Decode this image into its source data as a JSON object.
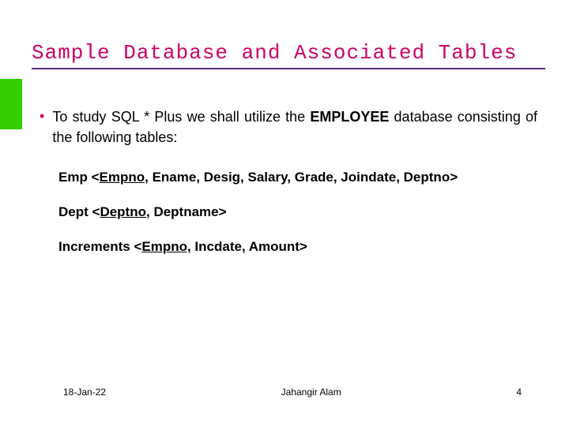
{
  "title": "Sample Database and Associated Tables",
  "bullet": {
    "pre": "To study SQL * Plus we shall utilize the ",
    "bold": "EMPLOYEE",
    "post": " database consisting of the following tables:"
  },
  "schemas": [
    {
      "name": "Emp",
      "pk": "Empno,",
      "rest": " Ename, Desig, Salary, Grade, Joindate, Deptno>"
    },
    {
      "name": "Dept",
      "pk": "Deptno,",
      "rest": " Deptname>"
    },
    {
      "name": "Increments",
      "pk": "Empno,",
      "rest": " Incdate, Amount>"
    }
  ],
  "footer": {
    "date": "18-Jan-22",
    "author": "Jahangir Alam",
    "page": "4"
  },
  "colors": {
    "accent": "#cc0066",
    "title_underline": "#5a2a80",
    "green_bar": "#33cc00",
    "text": "#000000",
    "background": "#ffffff"
  }
}
